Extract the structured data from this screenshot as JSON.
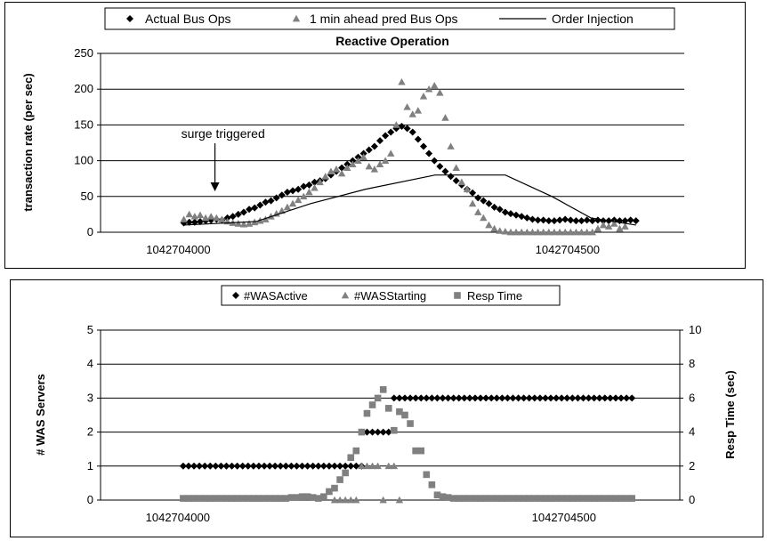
{
  "chart_data": [
    {
      "type": "scatter",
      "title": "Reactive Operation",
      "xlabel": "",
      "ylabel": "transaction  rate (per sec)",
      "xlim": [
        1042703900,
        1042704650
      ],
      "ylim": [
        0,
        250
      ],
      "yticks": [
        0,
        50,
        100,
        150,
        200,
        250
      ],
      "xticks": [
        1042704000,
        1042704500
      ],
      "grid": true,
      "legend": "top",
      "annotations": [
        {
          "text": "surge triggered",
          "x": 1042704047,
          "y": 65,
          "arrow_x": 1042704047,
          "arrow_y": 50
        }
      ],
      "series": [
        {
          "name": "Actual Bus Ops",
          "marker": "diamond",
          "color": "#000000",
          "x": [
            1042704007,
            1042704014,
            1042704021,
            1042704028,
            1042704035,
            1042704042,
            1042704049,
            1042704056,
            1042704063,
            1042704070,
            1042704077,
            1042704084,
            1042704091,
            1042704098,
            1042704105,
            1042704112,
            1042704119,
            1042704126,
            1042704133,
            1042704140,
            1042704147,
            1042704154,
            1042704161,
            1042704168,
            1042704175,
            1042704182,
            1042704189,
            1042704196,
            1042704203,
            1042704210,
            1042704217,
            1042704224,
            1042704231,
            1042704238,
            1042704245,
            1042704252,
            1042704259,
            1042704266,
            1042704273,
            1042704280,
            1042704287,
            1042704294,
            1042704301,
            1042704308,
            1042704315,
            1042704322,
            1042704329,
            1042704336,
            1042704343,
            1042704350,
            1042704357,
            1042704364,
            1042704371,
            1042704378,
            1042704385,
            1042704392,
            1042704399,
            1042704406,
            1042704413,
            1042704420,
            1042704427,
            1042704434,
            1042704441,
            1042704448,
            1042704455,
            1042704462,
            1042704469,
            1042704476,
            1042704483,
            1042704490,
            1042704497,
            1042704504,
            1042704511,
            1042704518,
            1042704525,
            1042704532,
            1042704539,
            1042704546,
            1042704553,
            1042704560,
            1042704567,
            1042704574,
            1042704581,
            1042704588
          ],
          "y": [
            13,
            14,
            14,
            15,
            16,
            17,
            18,
            17,
            20,
            22,
            25,
            28,
            32,
            34,
            38,
            42,
            44,
            48,
            52,
            56,
            58,
            60,
            64,
            66,
            70,
            72,
            75,
            80,
            85,
            90,
            95,
            100,
            105,
            110,
            115,
            120,
            128,
            135,
            140,
            145,
            148,
            145,
            140,
            130,
            120,
            110,
            100,
            92,
            85,
            78,
            72,
            66,
            60,
            55,
            48,
            44,
            40,
            35,
            32,
            28,
            26,
            24,
            22,
            20,
            18,
            17,
            17,
            16,
            16,
            17,
            18,
            17,
            16,
            16,
            17,
            16,
            17,
            16,
            16,
            17,
            16,
            16,
            17,
            16
          ]
        },
        {
          "name": "1 min ahead pred Bus Ops",
          "marker": "triangle",
          "color": "#808080",
          "x": [
            1042704007,
            1042704014,
            1042704021,
            1042704028,
            1042704035,
            1042704042,
            1042704049,
            1042704056,
            1042704063,
            1042704070,
            1042704077,
            1042704084,
            1042704091,
            1042704098,
            1042704105,
            1042704112,
            1042704119,
            1042704126,
            1042704133,
            1042704140,
            1042704147,
            1042704154,
            1042704161,
            1042704168,
            1042704175,
            1042704182,
            1042704189,
            1042704196,
            1042704203,
            1042704210,
            1042704217,
            1042704224,
            1042704231,
            1042704238,
            1042704245,
            1042704252,
            1042704259,
            1042704266,
            1042704273,
            1042704280,
            1042704287,
            1042704294,
            1042704301,
            1042704308,
            1042704315,
            1042704322,
            1042704329,
            1042704336,
            1042704343,
            1042704350,
            1042704357,
            1042704364,
            1042704371,
            1042704378,
            1042704385,
            1042704392,
            1042704399,
            1042704406,
            1042704413,
            1042704420,
            1042704427,
            1042704434,
            1042704441,
            1042704448,
            1042704455,
            1042704462,
            1042704469,
            1042704476,
            1042704483,
            1042704490,
            1042704497,
            1042704504,
            1042704511,
            1042704518,
            1042704525,
            1042704532,
            1042704539,
            1042704546,
            1042704553,
            1042704560,
            1042704567,
            1042704574
          ],
          "y": [
            18,
            25,
            22,
            24,
            20,
            22,
            20,
            18,
            15,
            13,
            12,
            11,
            12,
            14,
            16,
            18,
            22,
            26,
            30,
            35,
            40,
            45,
            50,
            56,
            62,
            70,
            78,
            85,
            88,
            82,
            90,
            95,
            100,
            105,
            92,
            88,
            95,
            100,
            110,
            150,
            210,
            175,
            165,
            170,
            190,
            200,
            205,
            195,
            160,
            120,
            90,
            70,
            60,
            40,
            28,
            20,
            10,
            5,
            2,
            1,
            0,
            0,
            0,
            0,
            0,
            0,
            0,
            0,
            0,
            0,
            0,
            0,
            0,
            0,
            0,
            0,
            5,
            10,
            8,
            12,
            5,
            8
          ]
        },
        {
          "name": "Order Injection",
          "marker": "line",
          "color": "#000000",
          "x": [
            1042704007,
            1042704100,
            1042704170,
            1042704240,
            1042704330,
            1042704420,
            1042704480,
            1042704530,
            1042704588
          ],
          "y": [
            10,
            15,
            40,
            60,
            80,
            80,
            50,
            20,
            10
          ]
        }
      ]
    },
    {
      "type": "scatter",
      "title": "",
      "xlabel": "",
      "ylabel": "# WAS Servers",
      "y2label": "Resp Time (sec)",
      "xlim": [
        1042703900,
        1042704650
      ],
      "ylim": [
        0,
        5
      ],
      "y2lim": [
        0,
        10
      ],
      "yticks": [
        0,
        1,
        2,
        3,
        4,
        5
      ],
      "y2ticks": [
        0,
        2,
        4,
        6,
        8,
        10
      ],
      "xticks": [
        1042704000,
        1042704500
      ],
      "grid": true,
      "legend": "top",
      "series": [
        {
          "name": "#WASActive",
          "marker": "diamond",
          "color": "#000000",
          "axis": "left",
          "x": [
            1042704007,
            1042704014,
            1042704021,
            1042704028,
            1042704035,
            1042704042,
            1042704049,
            1042704056,
            1042704063,
            1042704070,
            1042704077,
            1042704084,
            1042704091,
            1042704098,
            1042704105,
            1042704112,
            1042704119,
            1042704126,
            1042704133,
            1042704140,
            1042704147,
            1042704154,
            1042704161,
            1042704168,
            1042704175,
            1042704182,
            1042704189,
            1042704196,
            1042704203,
            1042704210,
            1042704217,
            1042704224,
            1042704231,
            1042704238,
            1042704245,
            1042704252,
            1042704259,
            1042704266,
            1042704273,
            1042704280,
            1042704287,
            1042704294,
            1042704301,
            1042704308,
            1042704315,
            1042704322,
            1042704329,
            1042704336,
            1042704343,
            1042704350,
            1042704357,
            1042704364,
            1042704371,
            1042704378,
            1042704385,
            1042704392,
            1042704399,
            1042704406,
            1042704413,
            1042704420,
            1042704427,
            1042704434,
            1042704441,
            1042704448,
            1042704455,
            1042704462,
            1042704469,
            1042704476,
            1042704483,
            1042704490,
            1042704497,
            1042704504,
            1042704511,
            1042704518,
            1042704525,
            1042704532,
            1042704539,
            1042704546,
            1042704553,
            1042704560,
            1042704567,
            1042704574,
            1042704581,
            1042704588
          ],
          "y": [
            1,
            1,
            1,
            1,
            1,
            1,
            1,
            1,
            1,
            1,
            1,
            1,
            1,
            1,
            1,
            1,
            1,
            1,
            1,
            1,
            1,
            1,
            1,
            1,
            1,
            1,
            1,
            1,
            1,
            1,
            1,
            1,
            1,
            1,
            2,
            2,
            2,
            2,
            2,
            3,
            3,
            3,
            3,
            3,
            3,
            3,
            3,
            3,
            3,
            3,
            3,
            3,
            3,
            3,
            3,
            3,
            3,
            3,
            3,
            3,
            3,
            3,
            3,
            3,
            3,
            3,
            3,
            3,
            3,
            3,
            3,
            3,
            3,
            3,
            3,
            3,
            3,
            3,
            3,
            3,
            3,
            3,
            3,
            3
          ]
        },
        {
          "name": "#WASStarting",
          "marker": "triangle",
          "color": "#808080",
          "axis": "left",
          "x": [
            1042704203,
            1042704210,
            1042704217,
            1042704224,
            1042704231,
            1042704238,
            1042704245,
            1042704252,
            1042704259,
            1042704266,
            1042704273,
            1042704280,
            1042704287
          ],
          "y": [
            0,
            0,
            0,
            0,
            0,
            1,
            1,
            1,
            1,
            0,
            1,
            1,
            0
          ]
        },
        {
          "name": "Resp Time",
          "marker": "square",
          "color": "#808080",
          "axis": "right",
          "x": [
            1042704007,
            1042704014,
            1042704021,
            1042704028,
            1042704035,
            1042704042,
            1042704049,
            1042704056,
            1042704063,
            1042704070,
            1042704077,
            1042704084,
            1042704091,
            1042704098,
            1042704105,
            1042704112,
            1042704119,
            1042704126,
            1042704133,
            1042704140,
            1042704147,
            1042704154,
            1042704161,
            1042704168,
            1042704175,
            1042704182,
            1042704189,
            1042704196,
            1042704203,
            1042704210,
            1042704217,
            1042704224,
            1042704231,
            1042704238,
            1042704245,
            1042704252,
            1042704259,
            1042704266,
            1042704273,
            1042704280,
            1042704287,
            1042704294,
            1042704301,
            1042704308,
            1042704315,
            1042704322,
            1042704329,
            1042704336,
            1042704343,
            1042704350,
            1042704357,
            1042704364,
            1042704371,
            1042704378,
            1042704385,
            1042704392,
            1042704399,
            1042704406,
            1042704413,
            1042704420,
            1042704427,
            1042704434,
            1042704441,
            1042704448,
            1042704455,
            1042704462,
            1042704469,
            1042704476,
            1042704483,
            1042704490,
            1042704497,
            1042704504,
            1042704511,
            1042704518,
            1042704525,
            1042704532,
            1042704539,
            1042704546,
            1042704553,
            1042704560,
            1042704567,
            1042704574,
            1042704581,
            1042704588
          ],
          "y": [
            0.1,
            0.1,
            0.1,
            0.1,
            0.1,
            0.1,
            0.1,
            0.1,
            0.1,
            0.1,
            0.1,
            0.1,
            0.1,
            0.1,
            0.1,
            0.1,
            0.1,
            0.1,
            0.1,
            0.1,
            0.15,
            0.15,
            0.2,
            0.2,
            0.15,
            0.1,
            0.2,
            0.5,
            0.7,
            1.2,
            1.6,
            2.5,
            2.9,
            4.0,
            5.1,
            5.6,
            6.0,
            6.5,
            5.4,
            4.1,
            5.2,
            5.0,
            4.5,
            2.9,
            2.9,
            1.5,
            0.9,
            0.3,
            0.2,
            0.15,
            0.1,
            0.1,
            0.1,
            0.1,
            0.1,
            0.1,
            0.1,
            0.1,
            0.1,
            0.1,
            0.1,
            0.1,
            0.1,
            0.1,
            0.1,
            0.1,
            0.1,
            0.1,
            0.1,
            0.1,
            0.1,
            0.1,
            0.1,
            0.1,
            0.1,
            0.1,
            0.1,
            0.1,
            0.1,
            0.1,
            0.1,
            0.1,
            0.1,
            0.1
          ]
        }
      ]
    }
  ]
}
